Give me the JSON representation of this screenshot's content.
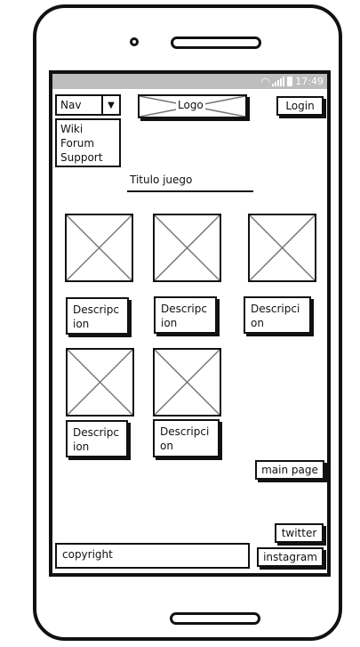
{
  "status_bar": {
    "time": "17:49",
    "wifi_icon": "wifi-icon",
    "signal_icon": "signal-icon",
    "battery_icon": "battery-icon"
  },
  "header": {
    "nav_label": "Nav",
    "nav_menu": [
      "Wiki",
      "Forum",
      "Support"
    ],
    "logo_label": "Logo",
    "login_label": "Login"
  },
  "main": {
    "title": "Titulo juego",
    "games": [
      {
        "description": "Descripcion"
      },
      {
        "description": "Descripcion"
      },
      {
        "description": "Descripcion"
      },
      {
        "description": "Descripcion"
      },
      {
        "description": "Descripcion"
      }
    ]
  },
  "buttons": {
    "main_page": "main page",
    "twitter": "twitter",
    "instagram": "instagram"
  },
  "footer": {
    "copyright": "copyright"
  },
  "colors": {
    "stroke": "#111111",
    "status_bar": "#bdbdbd",
    "placeholder_x": "#777777"
  }
}
